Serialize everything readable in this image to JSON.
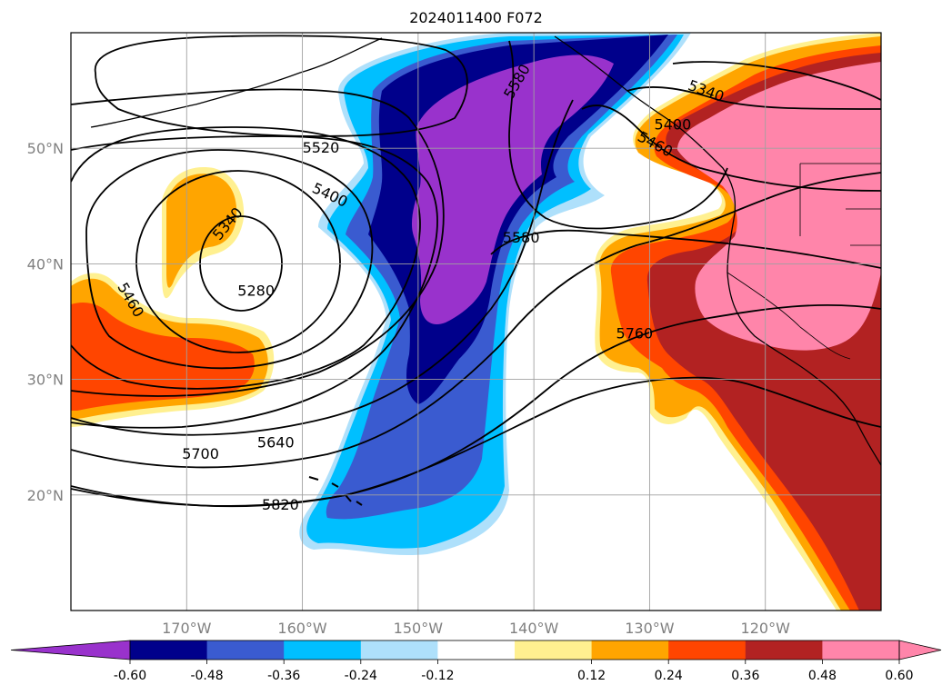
{
  "title": "2024011400 F072",
  "lat_labels": [
    {
      "lat": 50,
      "label": "50°N"
    },
    {
      "lat": 40,
      "label": "40°N"
    },
    {
      "lat": 30,
      "label": "30°N"
    },
    {
      "lat": 20,
      "label": "20°N"
    }
  ],
  "lon_labels": [
    {
      "lon": -170,
      "label": "170°W"
    },
    {
      "lon": -160,
      "label": "160°W"
    },
    {
      "lon": -150,
      "label": "150°W"
    },
    {
      "lon": -140,
      "label": "140°W"
    },
    {
      "lon": -130,
      "label": "130°W"
    },
    {
      "lon": -120,
      "label": "120°W"
    }
  ],
  "extent": {
    "lon_min": -180,
    "lon_max": -110,
    "lat_min": 10,
    "lat_max": 60
  },
  "colorbar": {
    "colors": [
      "#9932cc",
      "#00008b",
      "#3a5bd0",
      "#00bfff",
      "#aee0fb",
      "#ffffff",
      "#fff090",
      "#ffa500",
      "#ff4500",
      "#b22222",
      "#ff85aa",
      "#ff85aa"
    ],
    "ticks": [
      "-0.60",
      "-0.48",
      "-0.36",
      "-0.24",
      "-0.12",
      "0.12",
      "0.24",
      "0.36",
      "0.48",
      "0.60"
    ]
  },
  "contour_labels": [
    {
      "text": "5520",
      "lon": -158.4,
      "lat": 50.1,
      "rot": 0
    },
    {
      "text": "5400",
      "lon": -157.6,
      "lat": 46.0,
      "rot": 25
    },
    {
      "text": "5340",
      "lon": -166.5,
      "lat": 43.5,
      "rot": -50
    },
    {
      "text": "5280",
      "lon": -164.0,
      "lat": 37.7,
      "rot": 0
    },
    {
      "text": "5460",
      "lon": -174.8,
      "lat": 36.9,
      "rot": 60
    },
    {
      "text": "5640",
      "lon": -162.3,
      "lat": 24.6,
      "rot": 0
    },
    {
      "text": "5700",
      "lon": -168.8,
      "lat": 23.6,
      "rot": 0
    },
    {
      "text": "5820",
      "lon": -161.9,
      "lat": 19.2,
      "rot": 0
    },
    {
      "text": "5580",
      "lon": -141.5,
      "lat": 55.8,
      "rot": -60
    },
    {
      "text": "5580",
      "lon": -141.1,
      "lat": 42.3,
      "rot": 0
    },
    {
      "text": "5460",
      "lon": -129.5,
      "lat": 50.4,
      "rot": 28
    },
    {
      "text": "5400",
      "lon": -128.0,
      "lat": 52.1,
      "rot": 0
    },
    {
      "text": "5340",
      "lon": -125.1,
      "lat": 55.0,
      "rot": 20
    },
    {
      "text": "5760",
      "lon": -131.3,
      "lat": 34.0,
      "rot": 0
    }
  ]
}
